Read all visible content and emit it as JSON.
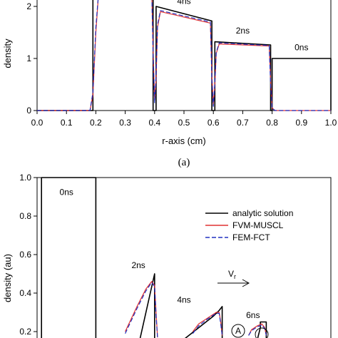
{
  "chart_data": [
    {
      "type": "line",
      "title": "",
      "ylabel": "density",
      "xlabel": "r-axis (cm)",
      "xlim": [
        0,
        1.0
      ],
      "ylim": [
        0,
        2.3
      ],
      "x_ticks": [
        "0.0",
        "0.1",
        "0.2",
        "0.3",
        "0.4",
        "0.5",
        "0.6",
        "0.7",
        "0.8",
        "0.9",
        "1.0"
      ],
      "y_ticks": [
        "0",
        "1",
        "2"
      ],
      "panel_label": "(a)",
      "annotations": [
        {
          "text": "4ns",
          "x": 0.5,
          "y": 2.05
        },
        {
          "text": "2ns",
          "x": 0.7,
          "y": 1.48
        },
        {
          "text": "0ns",
          "x": 0.9,
          "y": 1.16
        }
      ],
      "series": [
        {
          "name": "analytic",
          "color": "#000000",
          "width": 1.6,
          "x": [
            0.0,
            0.19,
            0.19,
            0.205,
            0.205,
            0.395,
            0.395,
            0.405,
            0.405,
            0.595,
            0.595,
            0.605,
            0.605,
            0.795,
            0.795,
            0.8,
            0.8,
            1.0,
            1.0
          ],
          "y": [
            0,
            0,
            2.3,
            2.3,
            2.3,
            2.3,
            0,
            0,
            2.0,
            1.72,
            0,
            0,
            1.32,
            1.26,
            0,
            0,
            1.0,
            1.0,
            0
          ]
        },
        {
          "name": "FVM-MUSCL",
          "color": "#e03030",
          "width": 1.2,
          "x": [
            0.0,
            0.18,
            0.19,
            0.2,
            0.21,
            0.39,
            0.395,
            0.4,
            0.405,
            0.41,
            0.42,
            0.59,
            0.595,
            0.6,
            0.605,
            0.61,
            0.62,
            0.79,
            0.795,
            0.8,
            0.81,
            1.0
          ],
          "y": [
            0,
            0,
            0.3,
            1.5,
            2.3,
            2.3,
            1.2,
            0.2,
            0.6,
            1.6,
            1.9,
            1.68,
            0.7,
            0.1,
            0.5,
            1.1,
            1.28,
            1.24,
            0.6,
            0.05,
            0,
            0
          ]
        },
        {
          "name": "FEM-FCT",
          "color": "#2030c0",
          "width": 1.2,
          "dash": true,
          "x": [
            0.0,
            0.18,
            0.19,
            0.2,
            0.21,
            0.39,
            0.395,
            0.4,
            0.405,
            0.41,
            0.42,
            0.59,
            0.595,
            0.6,
            0.605,
            0.61,
            0.62,
            0.79,
            0.795,
            0.8,
            0.81,
            1.0
          ],
          "y": [
            0,
            0,
            0.35,
            1.6,
            2.3,
            2.3,
            1.1,
            0.15,
            0.7,
            1.65,
            1.92,
            1.7,
            0.6,
            0.08,
            0.55,
            1.12,
            1.3,
            1.25,
            0.5,
            0.04,
            0,
            0
          ]
        }
      ]
    },
    {
      "type": "line",
      "title": "",
      "ylabel": "density (au)",
      "xlabel": "",
      "xlim": [
        0,
        1.0
      ],
      "ylim": [
        0.16,
        1.0
      ],
      "y_ticks": [
        "0.2",
        "0.4",
        "0.6",
        "0.8",
        "1.0"
      ],
      "annotations": [
        {
          "text": "0ns",
          "x": 0.1,
          "y": 0.91
        },
        {
          "text": "2ns",
          "x": 0.345,
          "y": 0.53
        },
        {
          "text": "4ns",
          "x": 0.5,
          "y": 0.35
        },
        {
          "text": "6ns",
          "x": 0.735,
          "y": 0.27
        }
      ],
      "vr_label": "V",
      "vr_subscript": "r",
      "circle_label": "A",
      "legend": {
        "placement": "right",
        "entries": [
          {
            "label": "analytic solution",
            "color": "#000000",
            "dash": false
          },
          {
            "label": "FVM-MUSCL",
            "color": "#e03030",
            "dash": false
          },
          {
            "label": "FEM-FCT",
            "color": "#2030c0",
            "dash": true
          }
        ]
      },
      "series": [
        {
          "name": "analytic",
          "color": "#000000",
          "width": 1.6,
          "x": [
            0.0,
            0.015,
            0.015,
            0.2,
            0.2,
            0.25,
            0.25,
            0.35,
            0.4,
            0.4,
            0.5,
            0.5,
            0.6,
            0.62,
            0.63,
            0.63,
            0.67,
            0.67,
            0.71,
            0.75,
            0.76,
            0.76,
            0.78,
            0.78,
            0.8,
            0.82
          ],
          "y": [
            0.16,
            0.16,
            1.0,
            1.0,
            0.16,
            0.16,
            0.16,
            0.16,
            0.5,
            0.16,
            0.16,
            0.16,
            0.28,
            0.31,
            0.33,
            0.16,
            0.16,
            0.16,
            0.16,
            0.16,
            0.22,
            0.25,
            0.25,
            0.16,
            0.16,
            0.16
          ]
        },
        {
          "name": "FVM-MUSCL",
          "color": "#e03030",
          "width": 1.2,
          "x": [
            0.3,
            0.34,
            0.37,
            0.39,
            0.4,
            0.405,
            0.41
          ],
          "y": [
            0.2,
            0.33,
            0.42,
            0.46,
            0.44,
            0.3,
            0.17
          ]
        },
        {
          "name": "FVM-MUSCL-2",
          "color": "#e03030",
          "width": 1.2,
          "x": [
            0.53,
            0.55,
            0.58,
            0.61,
            0.62,
            0.625,
            0.63
          ],
          "y": [
            0.2,
            0.24,
            0.27,
            0.3,
            0.3,
            0.25,
            0.18
          ]
        },
        {
          "name": "FVM-MUSCL-3",
          "color": "#e03030",
          "width": 1.2,
          "x": [
            0.72,
            0.73,
            0.75,
            0.765,
            0.775,
            0.78
          ],
          "y": [
            0.18,
            0.21,
            0.23,
            0.24,
            0.22,
            0.18
          ]
        },
        {
          "name": "FEM-FCT",
          "color": "#2030c0",
          "width": 1.2,
          "dash": true,
          "x": [
            0.3,
            0.34,
            0.37,
            0.39,
            0.4,
            0.405,
            0.41
          ],
          "y": [
            0.19,
            0.32,
            0.41,
            0.455,
            0.435,
            0.28,
            0.17
          ]
        },
        {
          "name": "FEM-FCT-2",
          "color": "#2030c0",
          "width": 1.2,
          "dash": true,
          "x": [
            0.53,
            0.55,
            0.58,
            0.61,
            0.62,
            0.625,
            0.63
          ],
          "y": [
            0.19,
            0.23,
            0.265,
            0.295,
            0.295,
            0.24,
            0.18
          ]
        },
        {
          "name": "FEM-FCT-3",
          "color": "#2030c0",
          "width": 1.2,
          "dash": true,
          "x": [
            0.72,
            0.73,
            0.75,
            0.765,
            0.775,
            0.78
          ],
          "y": [
            0.18,
            0.205,
            0.225,
            0.235,
            0.215,
            0.18
          ]
        }
      ]
    }
  ]
}
